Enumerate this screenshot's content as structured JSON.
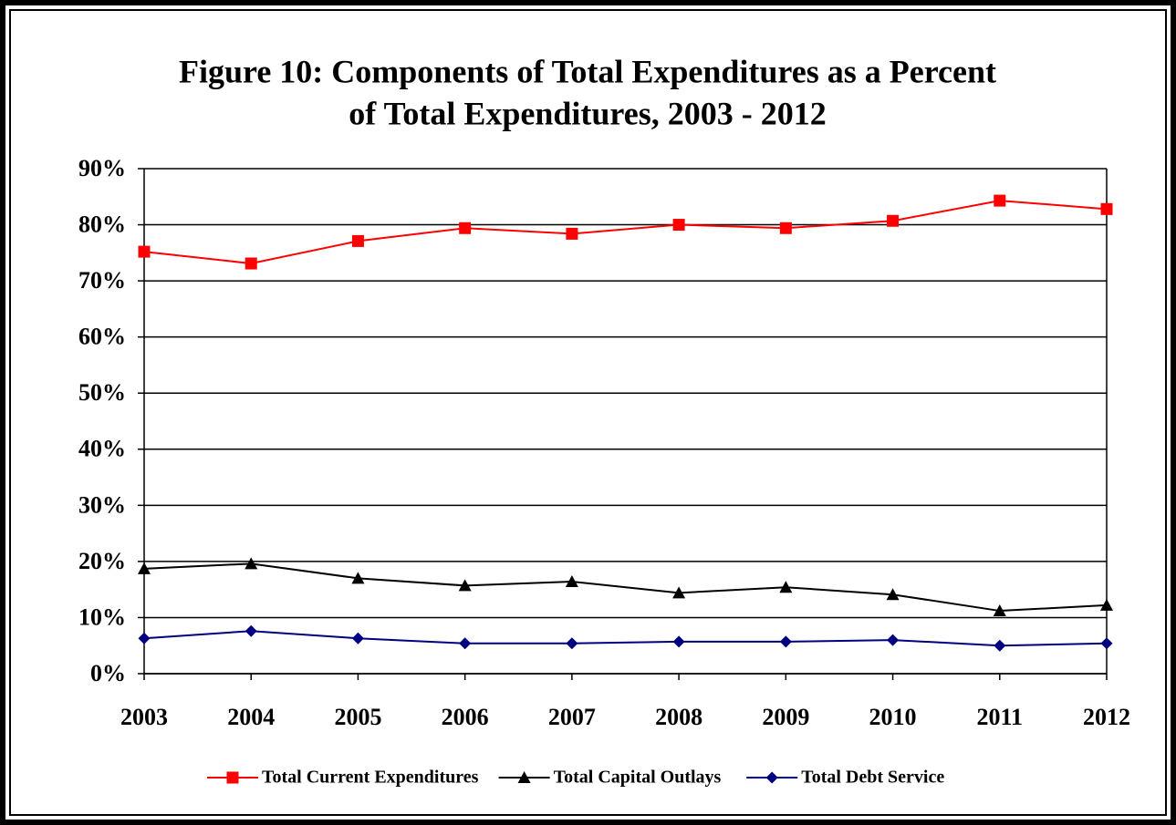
{
  "chart_data": {
    "type": "line",
    "title": [
      "Figure 10:  Components of Total Expenditures as a Percent",
      "of Total Expenditures, 2003 - 2012"
    ],
    "categories": [
      "2003",
      "2004",
      "2005",
      "2006",
      "2007",
      "2008",
      "2009",
      "2010",
      "2011",
      "2012"
    ],
    "series": [
      {
        "name": "Total Current Expenditures",
        "color": "#ff0000",
        "marker": "square",
        "values": [
          75.2,
          73.1,
          77.1,
          79.4,
          78.4,
          80.0,
          79.4,
          80.7,
          84.3,
          82.8
        ]
      },
      {
        "name": "Total Capital Outlays",
        "color": "#000000",
        "marker": "triangle",
        "values": [
          18.7,
          19.6,
          17.0,
          15.7,
          16.4,
          14.4,
          15.4,
          14.1,
          11.2,
          12.2
        ]
      },
      {
        "name": "Total Debt Service",
        "color": "#000080",
        "marker": "diamond",
        "values": [
          6.3,
          7.6,
          6.3,
          5.4,
          5.4,
          5.7,
          5.7,
          6.0,
          5.0,
          5.4
        ]
      }
    ],
    "ylim": [
      0,
      90
    ],
    "yticks": [
      {
        "value": 0,
        "label": "0%"
      },
      {
        "value": 10,
        "label": "10%"
      },
      {
        "value": 20,
        "label": "20%"
      },
      {
        "value": 30,
        "label": "30%"
      },
      {
        "value": 40,
        "label": "40%"
      },
      {
        "value": 50,
        "label": "50%"
      },
      {
        "value": 60,
        "label": "60%"
      },
      {
        "value": 70,
        "label": "70%"
      },
      {
        "value": 80,
        "label": "80%"
      },
      {
        "value": 90,
        "label": "90%"
      }
    ],
    "grid": true,
    "legend": "bottom"
  }
}
